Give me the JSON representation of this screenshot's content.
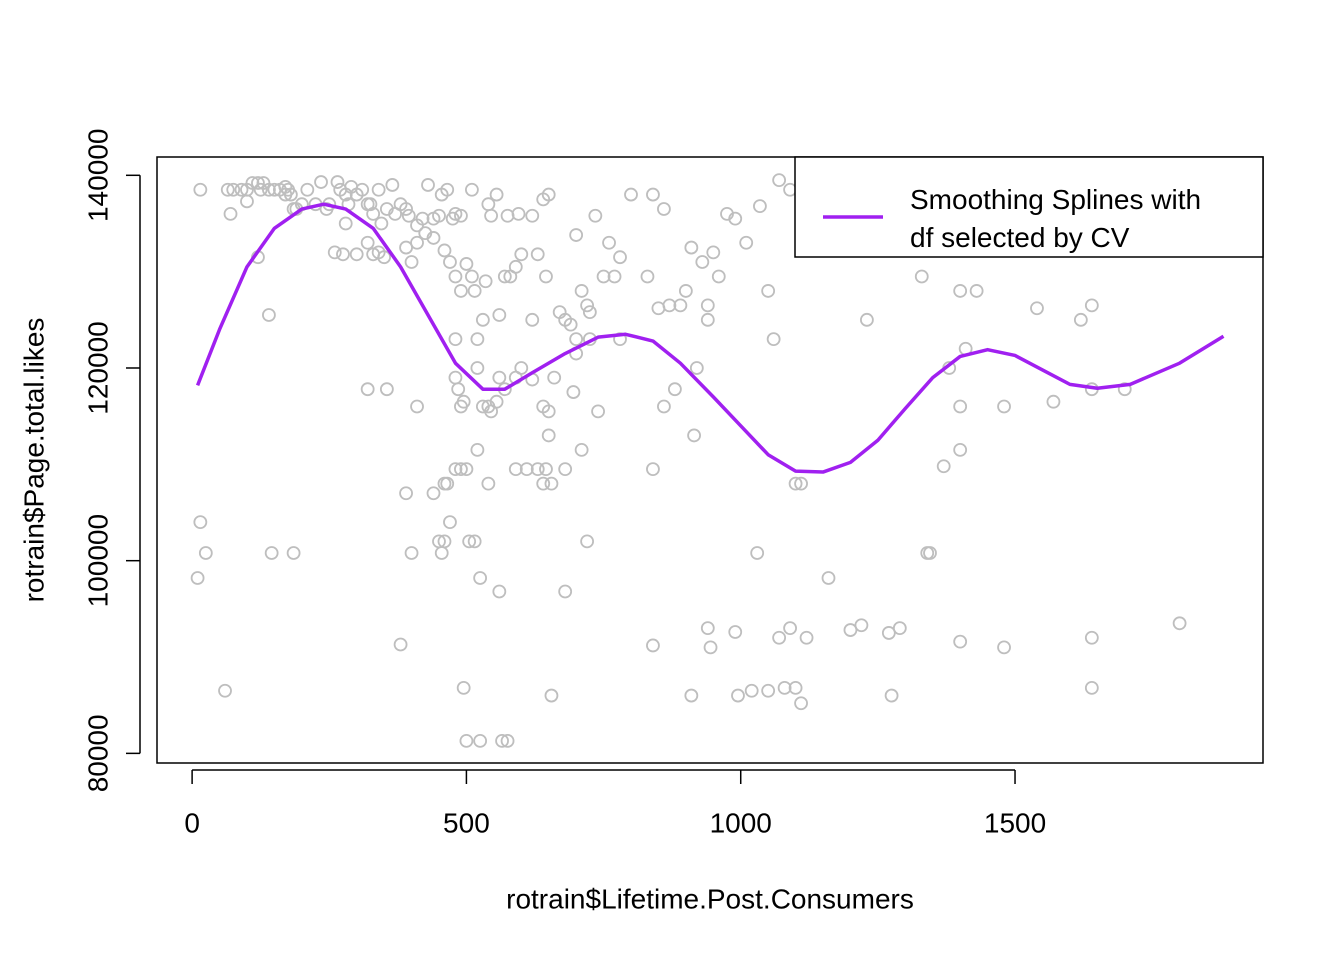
{
  "chart_data": {
    "type": "scatter",
    "x_label": "rotrain$Lifetime.Post.Consumers",
    "y_label": "rotrain$Page.total.likes",
    "xlim": [
      -64,
      1952
    ],
    "ylim": [
      79000,
      141900
    ],
    "xticks": [
      0,
      500,
      1000,
      1500
    ],
    "yticks": [
      80000,
      100000,
      120000,
      140000
    ],
    "legend_position": "topright",
    "series": [
      {
        "type": "scatter",
        "color": "#bebebe",
        "x": [
          15,
          65,
          75,
          90,
          100,
          110,
          120,
          125,
          130,
          140,
          150,
          160,
          170,
          175,
          180,
          185,
          190,
          200,
          210,
          225,
          235,
          245,
          250,
          265,
          270,
          280,
          285,
          290,
          300,
          310,
          320,
          325,
          330,
          340,
          345,
          355,
          365,
          370,
          380,
          390,
          395,
          410,
          420,
          430,
          440,
          450,
          455,
          465,
          475,
          480,
          490,
          510,
          540,
          545,
          555,
          575,
          595,
          600,
          620,
          640,
          650,
          70,
          100,
          120,
          170,
          260,
          275,
          280,
          300,
          320,
          330,
          340,
          350,
          390,
          400,
          410,
          425,
          440,
          460,
          470,
          480,
          490,
          500,
          510,
          515,
          535,
          560,
          570,
          580,
          590,
          620,
          630,
          645,
          670,
          680,
          700,
          710,
          720,
          725,
          735,
          750,
          760,
          770,
          780,
          800,
          830,
          840,
          850,
          860,
          870,
          890,
          900,
          910,
          930,
          940,
          950,
          960,
          975,
          990,
          1010,
          1035,
          1050,
          1060,
          1070,
          1090,
          1330,
          1400,
          1430,
          1540,
          1620,
          1640,
          1230,
          140,
          940,
          700,
          480,
          520,
          530,
          690,
          725,
          320,
          355,
          410,
          480,
          485,
          490,
          495,
          520,
          530,
          540,
          545,
          555,
          560,
          570,
          590,
          600,
          620,
          640,
          650,
          660,
          695,
          700,
          740,
          780,
          860,
          880,
          920,
          1400,
          1480,
          1570,
          1640,
          1700,
          1410,
          1380,
          480,
          490,
          500,
          520,
          540,
          590,
          610,
          630,
          640,
          645,
          655,
          680,
          710,
          650,
          840,
          915,
          1100,
          1110,
          1370,
          1400,
          390,
          440,
          460,
          465,
          15,
          25,
          145,
          185,
          400,
          450,
          460,
          455,
          470,
          505,
          515,
          525,
          560,
          680,
          720,
          1030,
          1340,
          1345,
          1160,
          10,
          60,
          380,
          495,
          500,
          525,
          565,
          575,
          655,
          840,
          910,
          940,
          945,
          990,
          995,
          1020,
          1050,
          1070,
          1080,
          1090,
          1100,
          1110,
          1120,
          1200,
          1220,
          1270,
          1275,
          1290,
          1400,
          1480,
          1640,
          1640,
          1800
        ],
        "values": [
          138500,
          138500,
          138500,
          138500,
          138500,
          139200,
          139200,
          138500,
          139200,
          138500,
          138500,
          138500,
          138800,
          138500,
          138000,
          136500,
          136500,
          137000,
          138500,
          137000,
          139300,
          136500,
          137000,
          139300,
          138500,
          138000,
          137000,
          138800,
          138000,
          138500,
          137000,
          137000,
          136000,
          138500,
          135000,
          136500,
          139000,
          136000,
          137000,
          136500,
          135800,
          134800,
          135500,
          139000,
          135500,
          135800,
          138000,
          138500,
          135500,
          136000,
          135800,
          138500,
          137000,
          135800,
          138000,
          135800,
          136000,
          131800,
          135800,
          137500,
          138000,
          136000,
          137300,
          131500,
          138000,
          132000,
          131800,
          135000,
          131800,
          133000,
          131800,
          132000,
          131500,
          132500,
          131000,
          133000,
          134000,
          133500,
          132200,
          131000,
          129500,
          128000,
          130800,
          129500,
          128000,
          129000,
          125500,
          129500,
          129500,
          130500,
          125000,
          131800,
          129500,
          125800,
          125000,
          133800,
          128000,
          126500,
          125800,
          135800,
          129500,
          133000,
          129500,
          131500,
          138000,
          129500,
          138000,
          126200,
          136500,
          126500,
          126500,
          128000,
          132500,
          131000,
          126500,
          132000,
          129500,
          136000,
          135500,
          133000,
          136800,
          128000,
          123000,
          139500,
          138500,
          129500,
          128000,
          128000,
          126200,
          125000,
          126500,
          125000,
          125500,
          125000,
          123000,
          123000,
          123000,
          125000,
          124500,
          123000,
          117800,
          117800,
          116000,
          119000,
          117800,
          116000,
          116500,
          120000,
          116000,
          116000,
          115500,
          116500,
          119000,
          117800,
          119000,
          120000,
          118800,
          116000,
          115500,
          119000,
          117500,
          121500,
          115500,
          123000,
          116000,
          117800,
          120000,
          116000,
          116000,
          116500,
          117800,
          117800,
          122000,
          120000,
          109500,
          109500,
          109500,
          111500,
          108000,
          109500,
          109500,
          109500,
          108000,
          109500,
          108000,
          109500,
          111500,
          113000,
          109500,
          113000,
          108000,
          108000,
          109800,
          111500,
          107000,
          107000,
          108000,
          108000,
          104000,
          100800,
          100800,
          100800,
          100800,
          102000,
          102000,
          100800,
          104000,
          102000,
          102000,
          98200,
          96800,
          96800,
          102000,
          100800,
          100800,
          100800,
          98200,
          98200,
          86500,
          91300,
          86800,
          81300,
          81300,
          81300,
          81300,
          86000,
          91200,
          86000,
          93000,
          91000,
          92600,
          86000,
          86500,
          86500,
          92000,
          86800,
          93000,
          86800,
          85200,
          92000,
          92800,
          93300,
          92500,
          86000,
          93000,
          91600,
          91000,
          92000,
          86800,
          93500
        ]
      },
      {
        "type": "line",
        "name": "Smoothing Splines with\ndf selected by CV",
        "color": "#a020f0",
        "x": [
          10,
          50,
          100,
          150,
          200,
          240,
          280,
          330,
          380,
          430,
          480,
          530,
          570,
          620,
          680,
          740,
          790,
          840,
          890,
          950,
          1000,
          1050,
          1100,
          1150,
          1200,
          1250,
          1300,
          1350,
          1400,
          1450,
          1500,
          1550,
          1600,
          1650,
          1710,
          1800,
          1880
        ],
        "values": [
          118200,
          124000,
          130500,
          134500,
          136500,
          137000,
          136500,
          134500,
          130500,
          125500,
          120500,
          117800,
          117800,
          119500,
          121500,
          123200,
          123500,
          122800,
          120500,
          117000,
          114000,
          111000,
          109300,
          109200,
          110200,
          112500,
          115800,
          119000,
          121200,
          121900,
          121300,
          119800,
          118300,
          117900,
          118300,
          120500,
          123300
        ]
      }
    ]
  }
}
